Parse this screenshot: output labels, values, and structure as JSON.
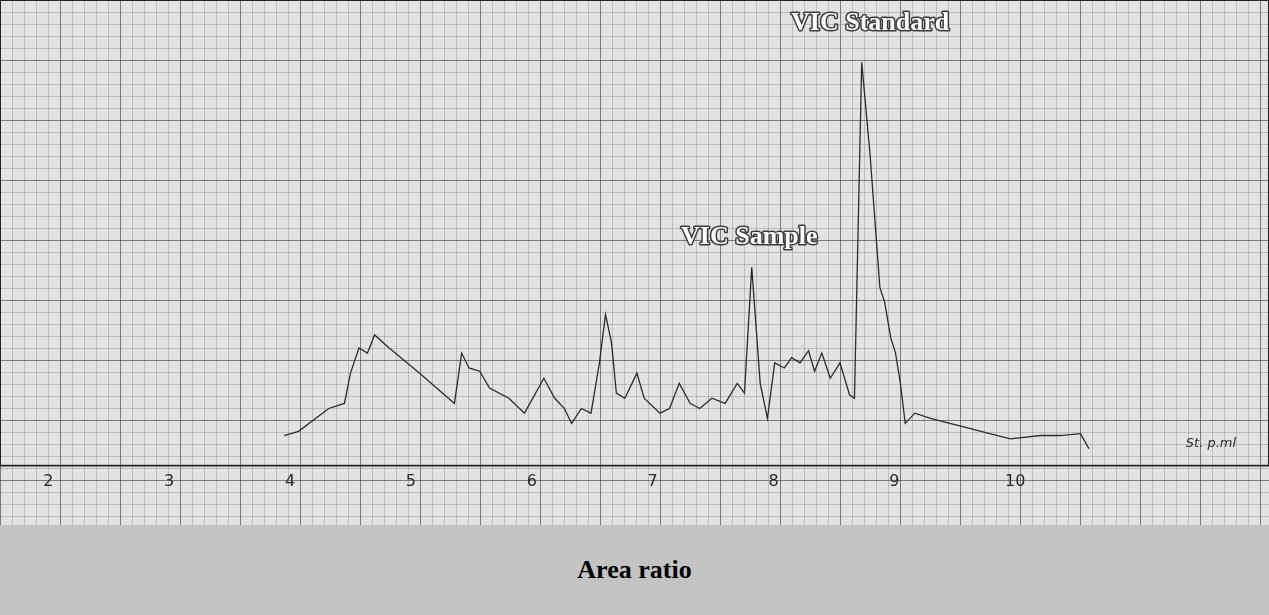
{
  "chart_data": {
    "type": "line",
    "title": "Area ratio",
    "x": [
      3.95,
      4.07,
      4.32,
      4.45,
      4.5,
      4.57,
      4.64,
      4.7,
      4.82,
      5.07,
      5.36,
      5.42,
      5.48,
      5.57,
      5.65,
      5.81,
      5.94,
      6.1,
      6.19,
      6.27,
      6.33,
      6.41,
      6.49,
      6.56,
      6.61,
      6.66,
      6.7,
      6.77,
      6.87,
      6.93,
      7.06,
      7.14,
      7.22,
      7.31,
      7.39,
      7.49,
      7.6,
      7.7,
      7.76,
      7.82,
      7.89,
      7.95,
      8.01,
      8.09,
      8.15,
      8.22,
      8.29,
      8.34,
      8.4,
      8.47,
      8.55,
      8.63,
      8.67,
      8.73,
      8.8,
      8.88,
      8.92,
      8.97,
      9.01,
      9.05,
      9.09,
      9.17,
      9.3,
      9.46,
      9.63,
      9.79,
      9.96,
      10.21,
      10.37,
      10.54,
      10.61
    ],
    "values": [
      6.5,
      7.4,
      12.3,
      13.4,
      19.9,
      25.3,
      24.2,
      28.1,
      25.3,
      19.9,
      13.4,
      24.2,
      21.0,
      20.3,
      16.7,
      14.5,
      11.3,
      18.8,
      14.5,
      12.3,
      9.1,
      12.3,
      11.3,
      22.1,
      32.5,
      26.4,
      15.6,
      14.5,
      19.9,
      14.5,
      11.3,
      12.3,
      17.7,
      13.4,
      12.3,
      14.5,
      13.4,
      17.7,
      15.6,
      42.6,
      17.7,
      10.2,
      22.1,
      21.0,
      23.2,
      22.1,
      24.7,
      20.3,
      24.2,
      18.8,
      22.1,
      15.2,
      14.5,
      86.6,
      66.5,
      38.3,
      35.1,
      27.5,
      24.2,
      17.7,
      9.1,
      11.3,
      10.2,
      9.1,
      8.0,
      6.9,
      5.8,
      6.5,
      6.5,
      6.9,
      3.7
    ],
    "color": "#2b2b2b",
    "line_style": "solid",
    "xlim": [
      1.6,
      12.1
    ],
    "xticks": [
      2,
      3,
      4,
      5,
      6,
      7,
      8,
      9,
      10
    ],
    "ylim": [
      0,
      100
    ],
    "grid": true,
    "tick_labels": "x",
    "annotations": [
      {
        "text": "VIC Standard",
        "x": 8.8,
        "y": 95
      },
      {
        "text": "VIC Sample",
        "x": 7.8,
        "y": 49
      },
      {
        "text": "St. p.ml",
        "x": 11.62,
        "y": 4.8
      }
    ]
  }
}
